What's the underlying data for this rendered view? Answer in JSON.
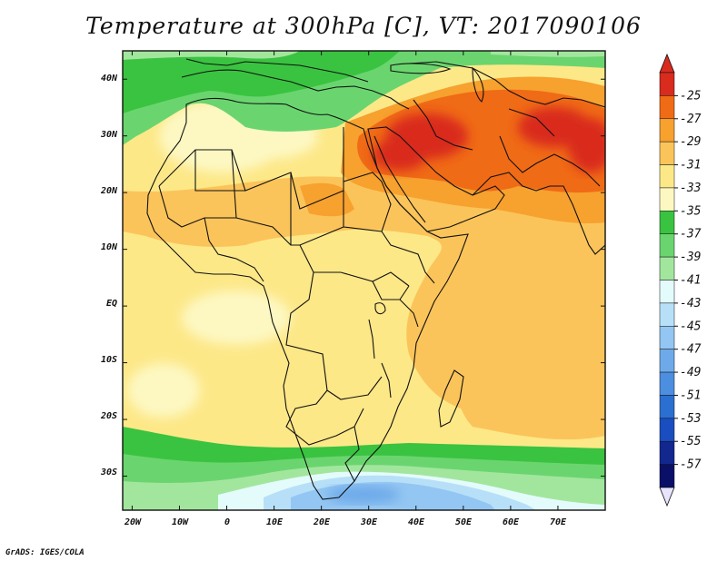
{
  "title": "Temperature at 300hPa [C], VT: 2017090106",
  "credit": "GrADS: IGES/COLA",
  "lat_labels": [
    "40N",
    "30N",
    "20N",
    "10N",
    "EQ",
    "10S",
    "20S",
    "30S"
  ],
  "lon_labels": [
    "20W",
    "10W",
    "0",
    "10E",
    "20E",
    "30E",
    "40E",
    "50E",
    "60E",
    "70E"
  ],
  "map": {
    "lon_range": [
      -22,
      80
    ],
    "lat_range": [
      -36,
      45
    ],
    "lat_ticks": [
      40,
      30,
      20,
      10,
      0,
      -10,
      -20,
      -30
    ],
    "lon_ticks": [
      -20,
      -10,
      0,
      10,
      20,
      30,
      40,
      50,
      60,
      70
    ]
  },
  "colorbar": {
    "labels": [
      "-25",
      "-27",
      "-29",
      "-31",
      "-33",
      "-35",
      "-37",
      "-39",
      "-41",
      "-43",
      "-45",
      "-47",
      "-49",
      "-51",
      "-53",
      "-55",
      "-57"
    ],
    "colors": [
      "#d92b1e",
      "#f06b16",
      "#f7a12e",
      "#fbc45a",
      "#fde888",
      "#fdf8c2",
      "#3ac340",
      "#6ad56f",
      "#a2e69e",
      "#e4fbfb",
      "#b7e0f8",
      "#93c6f2",
      "#6eaaea",
      "#4c8ee0",
      "#2b6fd1",
      "#1a4ec0",
      "#12288f",
      "#0a1068"
    ],
    "top_arrow_color": "#d92b1e",
    "bottom_arrow_color": "#e8e4ff"
  }
}
